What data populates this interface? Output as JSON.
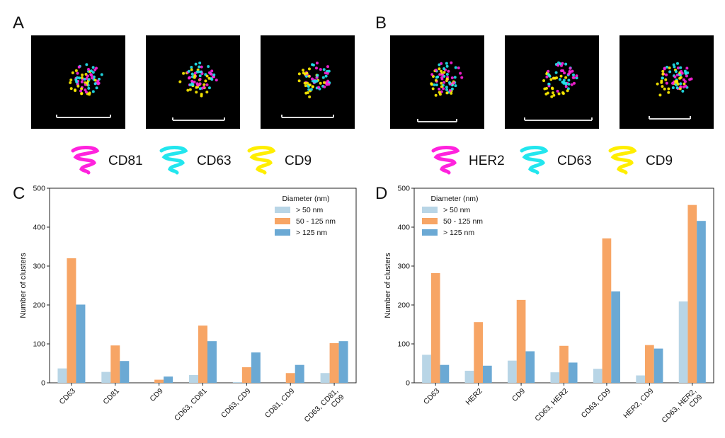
{
  "panels": {
    "a": "A",
    "b": "B",
    "c": "C",
    "d": "D"
  },
  "marker_legend_a": [
    {
      "label": "CD81",
      "color": "#ff22dd"
    },
    {
      "label": "CD63",
      "color": "#22e6ee"
    },
    {
      "label": "CD9",
      "color": "#ffee00"
    }
  ],
  "marker_legend_b": [
    {
      "label": "HER2",
      "color": "#ff22dd"
    },
    {
      "label": "CD63",
      "color": "#22e6ee"
    },
    {
      "label": "CD9",
      "color": "#ffee00"
    }
  ],
  "colors": {
    "s1": "#b8d5e6",
    "s2": "#f7a565",
    "s3": "#6ba9d4",
    "micro_bg": "#000000",
    "scalebar": "#dddddd"
  },
  "chart_data": [
    {
      "type": "bar",
      "panel": "C",
      "categories": [
        "CD63",
        "CD81",
        "CD9",
        "CD63, CD81",
        "CD63, CD9",
        "CD81, CD9",
        "CD63, CD81,\nCD9"
      ],
      "series": [
        {
          "name": "> 50 nm",
          "values": [
            37,
            28,
            0,
            20,
            2,
            0,
            25
          ]
        },
        {
          "name": "50 - 125 nm",
          "values": [
            320,
            96,
            8,
            147,
            40,
            25,
            102
          ]
        },
        {
          "name": "> 125 nm",
          "values": [
            201,
            56,
            16,
            107,
            78,
            46,
            107
          ]
        }
      ],
      "ylabel": "Number of clusters",
      "ylim": [
        0,
        500
      ],
      "yticks": [
        0,
        100,
        200,
        300,
        400,
        500
      ],
      "legend_title": "Diameter (nm)",
      "legend_position": "top-right"
    },
    {
      "type": "bar",
      "panel": "D",
      "categories": [
        "CD63",
        "HER2",
        "CD9",
        "CD63, HER2",
        "CD63, CD9",
        "HER2, CD9",
        "CD63, HER2,\nCD9"
      ],
      "series": [
        {
          "name": "> 50 nm",
          "values": [
            72,
            31,
            57,
            27,
            36,
            19,
            209
          ]
        },
        {
          "name": "50 - 125 nm",
          "values": [
            282,
            156,
            213,
            95,
            371,
            97,
            457
          ]
        },
        {
          "name": "> 125 nm",
          "values": [
            46,
            44,
            81,
            52,
            235,
            88,
            416
          ]
        }
      ],
      "ylabel": "Number of clusters",
      "ylim": [
        0,
        500
      ],
      "yticks": [
        0,
        100,
        200,
        300,
        400,
        500
      ],
      "legend_title": "Diameter (nm)",
      "legend_position": "top-left"
    }
  ]
}
